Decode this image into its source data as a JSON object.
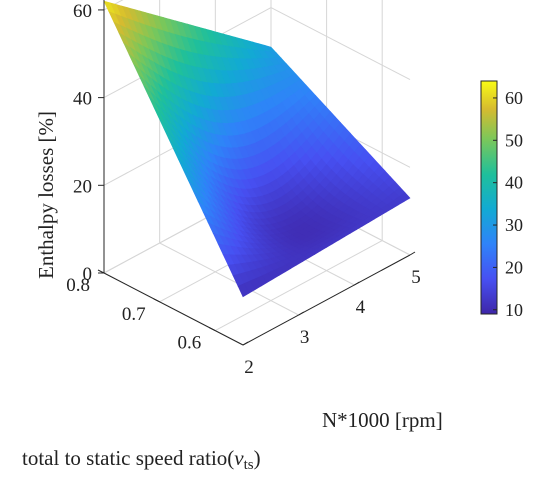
{
  "chart_data": {
    "type": "surface",
    "zlabel": "Enthalpy losses [%]",
    "xlabel": "N*1000 [rpm]",
    "ylabel": "total to static speed ratio(",
    "ylabel_symbol": "ν",
    "ylabel_subscript": "ts",
    "ylabel_close": ")",
    "x_ticks": [
      "2",
      "3",
      "4",
      "5"
    ],
    "y_ticks": [
      "0.6",
      "0.7",
      "0.8"
    ],
    "z_ticks": [
      "0",
      "20",
      "40",
      "60"
    ],
    "colorbar_ticks": [
      "10",
      "20",
      "30",
      "40",
      "50",
      "60"
    ],
    "xlim": [
      2,
      5
    ],
    "ylim": [
      0.55,
      0.8
    ],
    "zlim": [
      0,
      65
    ],
    "clim": [
      9,
      64
    ],
    "colormap": "parula",
    "grid": true,
    "surface": {
      "x": [
        2,
        5
      ],
      "y": [
        0.55,
        0.8
      ],
      "corner_values": {
        "x2_y055": 11,
        "x5_y055": 13,
        "x2_y08": 62,
        "x5_y08": 31
      },
      "min_value": 9
    }
  }
}
